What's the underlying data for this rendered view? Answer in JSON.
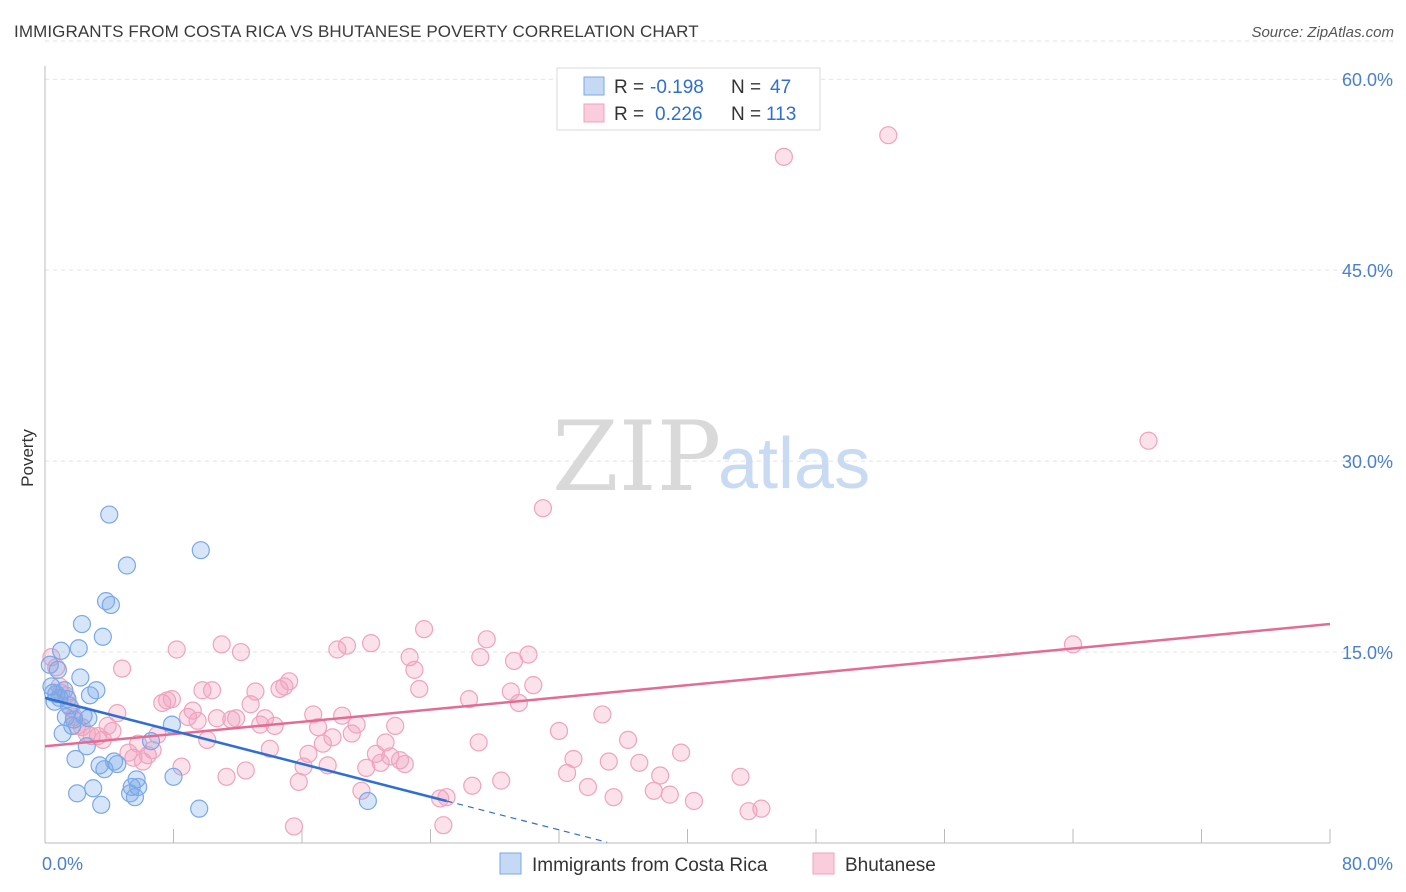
{
  "title": "IMMIGRANTS FROM COSTA RICA VS BHUTANESE POVERTY CORRELATION CHART",
  "source": "Source: ZipAtlas.com",
  "watermark": {
    "zip": "ZIP",
    "atlas": "atlas"
  },
  "legend": {
    "rows": [
      {
        "r_label": "R = ",
        "r_value": "-0.198",
        "n_label": "N = ",
        "n_value": "47"
      },
      {
        "r_label": "R = ",
        "r_value": "0.226",
        "n_label": "N = ",
        "n_value": "113"
      }
    ]
  },
  "chart_data": {
    "type": "scatter",
    "title": "IMMIGRANTS FROM COSTA RICA VS BHUTANESE POVERTY CORRELATION CHART",
    "xlabel": "",
    "ylabel": "Poverty",
    "xlim": [
      0,
      80
    ],
    "ylim": [
      0,
      63
    ],
    "x_tick_labels": [
      "0.0%",
      "80.0%"
    ],
    "y_ticks": [
      15,
      30,
      45,
      60
    ],
    "y_tick_labels": [
      "15.0%",
      "30.0%",
      "45.0%",
      "60.0%"
    ],
    "colors": {
      "blue": "#7aa8e8",
      "blue_line": "#2f6fd1",
      "pink": "#f0a3bd",
      "pink_line": "#e46b94"
    },
    "series": [
      {
        "name": "Immigrants from Costa Rica",
        "color": "#7aa8e8",
        "trend": {
          "x0": 0,
          "y0": 11.4,
          "x1": 25,
          "y1": 3.3,
          "dash_to_x": 35
        },
        "points": [
          [
            0.3,
            14.0
          ],
          [
            0.4,
            12.3
          ],
          [
            0.5,
            11.8
          ],
          [
            0.6,
            11.1
          ],
          [
            0.8,
            13.6
          ],
          [
            0.9,
            11.4
          ],
          [
            1.0,
            15.1
          ],
          [
            1.1,
            8.6
          ],
          [
            1.2,
            12.0
          ],
          [
            1.4,
            11.3
          ],
          [
            1.5,
            10.8
          ],
          [
            1.7,
            9.2
          ],
          [
            1.8,
            9.7
          ],
          [
            1.9,
            6.6
          ],
          [
            2.0,
            3.9
          ],
          [
            2.1,
            15.3
          ],
          [
            2.2,
            13.0
          ],
          [
            2.3,
            17.2
          ],
          [
            2.6,
            7.6
          ],
          [
            2.7,
            9.8
          ],
          [
            2.8,
            11.6
          ],
          [
            3.0,
            4.3
          ],
          [
            3.2,
            12.0
          ],
          [
            3.4,
            6.1
          ],
          [
            3.5,
            3.0
          ],
          [
            3.6,
            16.2
          ],
          [
            3.7,
            5.8
          ],
          [
            3.8,
            19.0
          ],
          [
            4.0,
            25.8
          ],
          [
            4.1,
            18.7
          ],
          [
            4.3,
            6.4
          ],
          [
            5.1,
            21.8
          ],
          [
            5.3,
            3.9
          ],
          [
            5.4,
            4.4
          ],
          [
            5.6,
            3.6
          ],
          [
            5.7,
            5.0
          ],
          [
            5.8,
            4.4
          ],
          [
            6.6,
            8.0
          ],
          [
            7.9,
            9.3
          ],
          [
            8.0,
            5.2
          ],
          [
            9.6,
            2.7
          ],
          [
            9.7,
            23.0
          ],
          [
            20.1,
            3.3
          ],
          [
            0.7,
            11.7
          ],
          [
            1.3,
            9.9
          ],
          [
            2.4,
            10.0
          ],
          [
            4.5,
            6.2
          ]
        ]
      },
      {
        "name": "Bhutanese",
        "color": "#f0a3bd",
        "trend": {
          "x0": 0,
          "y0": 7.6,
          "x1": 80,
          "y1": 17.2
        },
        "points": [
          [
            0.4,
            14.6
          ],
          [
            0.7,
            13.8
          ],
          [
            0.9,
            12.3
          ],
          [
            1.0,
            11.8
          ],
          [
            1.3,
            11.6
          ],
          [
            1.6,
            10.6
          ],
          [
            1.8,
            9.9
          ],
          [
            2.0,
            9.2
          ],
          [
            2.3,
            9.1
          ],
          [
            2.6,
            8.6
          ],
          [
            2.9,
            8.4
          ],
          [
            3.3,
            8.4
          ],
          [
            3.6,
            8.1
          ],
          [
            3.9,
            9.2
          ],
          [
            4.2,
            8.8
          ],
          [
            4.5,
            10.2
          ],
          [
            4.8,
            13.7
          ],
          [
            5.2,
            7.1
          ],
          [
            5.5,
            6.7
          ],
          [
            5.8,
            7.8
          ],
          [
            6.1,
            6.4
          ],
          [
            6.4,
            6.9
          ],
          [
            6.7,
            7.3
          ],
          [
            7.0,
            8.5
          ],
          [
            7.3,
            11.0
          ],
          [
            7.6,
            11.2
          ],
          [
            7.9,
            11.3
          ],
          [
            8.2,
            15.2
          ],
          [
            8.5,
            6.0
          ],
          [
            8.9,
            9.9
          ],
          [
            9.2,
            10.4
          ],
          [
            9.5,
            9.6
          ],
          [
            9.8,
            12.0
          ],
          [
            10.1,
            8.1
          ],
          [
            10.4,
            12.0
          ],
          [
            10.7,
            9.8
          ],
          [
            11.0,
            15.6
          ],
          [
            11.3,
            5.2
          ],
          [
            11.6,
            9.7
          ],
          [
            11.9,
            9.8
          ],
          [
            12.2,
            15.0
          ],
          [
            12.5,
            5.7
          ],
          [
            12.8,
            10.9
          ],
          [
            13.1,
            11.9
          ],
          [
            13.4,
            9.3
          ],
          [
            13.7,
            9.8
          ],
          [
            14.0,
            7.4
          ],
          [
            14.3,
            9.2
          ],
          [
            14.6,
            12.1
          ],
          [
            14.9,
            12.3
          ],
          [
            15.2,
            12.7
          ],
          [
            15.5,
            1.3
          ],
          [
            15.8,
            4.8
          ],
          [
            16.1,
            6.0
          ],
          [
            16.4,
            7.0
          ],
          [
            16.7,
            10.1
          ],
          [
            17.0,
            9.1
          ],
          [
            17.3,
            7.8
          ],
          [
            17.6,
            6.1
          ],
          [
            17.9,
            8.3
          ],
          [
            18.2,
            15.2
          ],
          [
            18.5,
            10.0
          ],
          [
            18.8,
            15.5
          ],
          [
            19.1,
            8.6
          ],
          [
            19.4,
            9.3
          ],
          [
            19.7,
            4.1
          ],
          [
            20.0,
            5.9
          ],
          [
            20.3,
            15.7
          ],
          [
            20.6,
            7.0
          ],
          [
            20.9,
            6.3
          ],
          [
            21.2,
            7.9
          ],
          [
            21.5,
            6.8
          ],
          [
            21.8,
            9.2
          ],
          [
            22.1,
            6.5
          ],
          [
            22.4,
            6.2
          ],
          [
            22.7,
            14.6
          ],
          [
            23.0,
            13.6
          ],
          [
            23.3,
            12.1
          ],
          [
            23.6,
            16.8
          ],
          [
            24.6,
            3.5
          ],
          [
            24.8,
            1.4
          ],
          [
            25.0,
            3.6
          ],
          [
            26.4,
            11.3
          ],
          [
            26.6,
            4.5
          ],
          [
            27.0,
            7.9
          ],
          [
            27.1,
            14.6
          ],
          [
            27.5,
            16.0
          ],
          [
            28.4,
            4.9
          ],
          [
            29.0,
            11.9
          ],
          [
            29.2,
            14.3
          ],
          [
            29.5,
            11.0
          ],
          [
            30.1,
            14.8
          ],
          [
            30.4,
            12.4
          ],
          [
            31.0,
            26.3
          ],
          [
            32.0,
            8.8
          ],
          [
            32.5,
            5.5
          ],
          [
            32.9,
            6.6
          ],
          [
            33.8,
            4.4
          ],
          [
            34.7,
            10.1
          ],
          [
            35.1,
            6.4
          ],
          [
            35.4,
            3.6
          ],
          [
            36.3,
            8.1
          ],
          [
            37.0,
            6.3
          ],
          [
            37.9,
            4.1
          ],
          [
            38.9,
            3.8
          ],
          [
            39.6,
            7.1
          ],
          [
            40.4,
            3.3
          ],
          [
            43.3,
            5.2
          ],
          [
            43.8,
            2.5
          ],
          [
            44.6,
            2.7
          ],
          [
            46.0,
            53.9
          ],
          [
            52.5,
            55.6
          ],
          [
            64.0,
            15.6
          ],
          [
            68.7,
            31.6
          ],
          [
            38.3,
            5.3
          ]
        ]
      }
    ]
  },
  "bottom_legend": [
    "Immigrants from Costa Rica",
    "Bhutanese"
  ]
}
